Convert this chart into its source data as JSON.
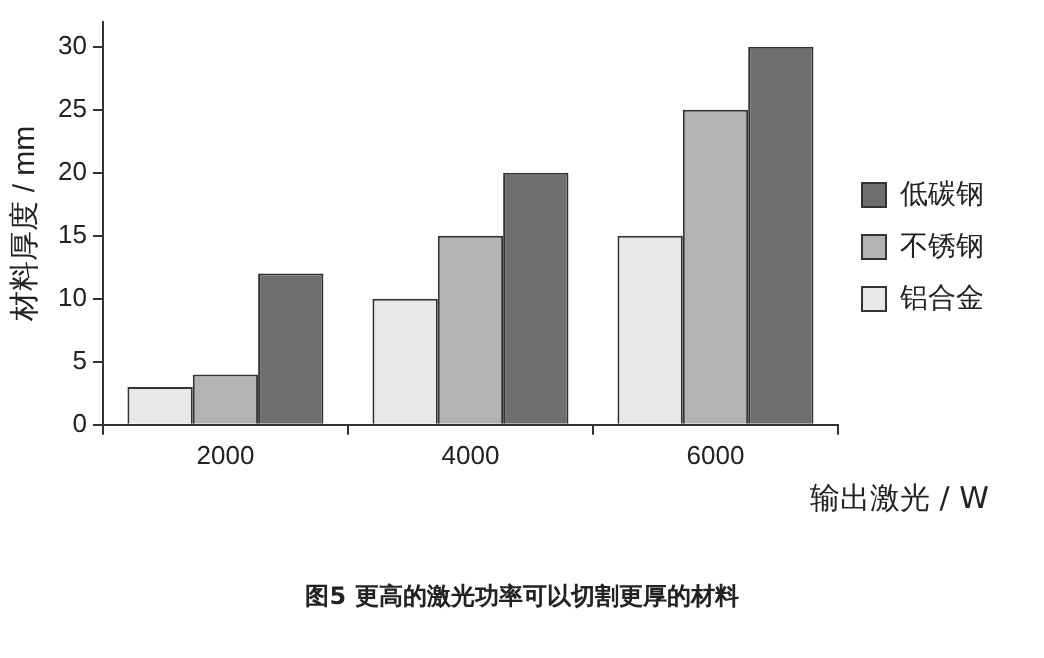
{
  "chart_data": {
    "type": "bar",
    "title": "图5 更高的激光功率可以切割更厚的材料",
    "xlabel": "输出激光 / W",
    "ylabel": "材料厚度 / mm",
    "categories": [
      "2000",
      "4000",
      "6000"
    ],
    "series": [
      {
        "name": "铝合金",
        "color": "#e8e8e8",
        "values": [
          3,
          10,
          15
        ]
      },
      {
        "name": "不锈钢",
        "color": "#b3b3b3",
        "values": [
          4,
          15,
          25
        ]
      },
      {
        "name": "低碳钢",
        "color": "#6f6f6f",
        "values": [
          12,
          20,
          30
        ]
      }
    ],
    "ylim": [
      0,
      32
    ],
    "yticks": [
      0,
      5,
      10,
      15,
      20,
      25,
      30
    ],
    "grid": false,
    "legend": "right"
  }
}
